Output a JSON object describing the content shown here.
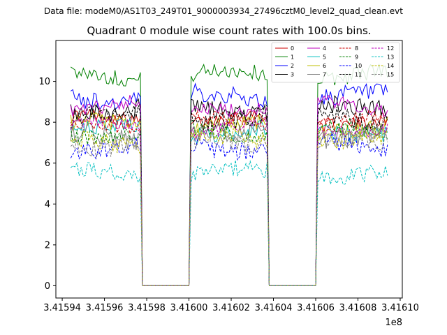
{
  "chart_data": {
    "type": "line",
    "suptitle": "Data file: modeM0/AS1T03_249T01_9000003934_27496cztM0_level2_quad_clean.evt",
    "title": "Quadrant 0 module wise count rates with 100.0s bins.",
    "xlabel": "",
    "ylabel": "",
    "x_offset_label": "1e8",
    "xlim": [
      3.415937,
      3.416101
    ],
    "ylim": [
      -0.6,
      12.0
    ],
    "xticks": [
      3.41594,
      3.41596,
      3.41598,
      3.416,
      3.41602,
      3.41604,
      3.41606,
      3.41608,
      3.4161
    ],
    "xtick_labels": [
      "3.41594",
      "3.41596",
      "3.41598",
      "3.41600",
      "3.41602",
      "3.41604",
      "3.41606",
      "3.41608",
      "3.41610"
    ],
    "yticks": [
      0,
      2,
      4,
      6,
      8,
      10
    ],
    "ytick_labels": [
      "0",
      "2",
      "4",
      "6",
      "8",
      "10"
    ],
    "grid": false,
    "legend_position": "top-right",
    "legend_columns": 4,
    "segments": [
      {
        "x_start": 3.415944,
        "x_end": 3.415977
      },
      {
        "x_start": 3.416001,
        "x_end": 3.416037
      },
      {
        "x_start": 3.416061,
        "x_end": 3.416094
      }
    ],
    "gaps": [
      {
        "x_start": 3.415978,
        "x_end": 3.416
      },
      {
        "x_start": 3.416038,
        "x_end": 3.41606
      }
    ],
    "series": [
      {
        "name": "0",
        "color": "#cc0000",
        "dash": "solid",
        "level": 8.1
      },
      {
        "name": "1",
        "color": "#008000",
        "dash": "solid",
        "level": 10.3
      },
      {
        "name": "2",
        "color": "#0000ff",
        "dash": "solid",
        "level": 9.2
      },
      {
        "name": "3",
        "color": "#000000",
        "dash": "solid",
        "level": 8.6
      },
      {
        "name": "4",
        "color": "#bf00bf",
        "dash": "solid",
        "level": 8.8
      },
      {
        "name": "5",
        "color": "#00bfbf",
        "dash": "solid",
        "level": 7.6
      },
      {
        "name": "6",
        "color": "#bfbf00",
        "dash": "solid",
        "level": 7.8
      },
      {
        "name": "7",
        "color": "#808080",
        "dash": "solid",
        "level": 7.3
      },
      {
        "name": "8",
        "color": "#cc0000",
        "dash": "dashed",
        "level": 8.0
      },
      {
        "name": "9",
        "color": "#008000",
        "dash": "dashed",
        "level": 7.5
      },
      {
        "name": "10",
        "color": "#0000ff",
        "dash": "dashed",
        "level": 6.8
      },
      {
        "name": "11",
        "color": "#000000",
        "dash": "dashed",
        "level": 8.3
      },
      {
        "name": "12",
        "color": "#bf00bf",
        "dash": "dashed",
        "level": 7.7
      },
      {
        "name": "13",
        "color": "#00bfbf",
        "dash": "dashed",
        "level": 5.5
      },
      {
        "name": "14",
        "color": "#bfbf00",
        "dash": "dashed",
        "level": 7.1
      },
      {
        "name": "15",
        "color": "#808080",
        "dash": "dashed",
        "level": 7.0
      }
    ]
  }
}
